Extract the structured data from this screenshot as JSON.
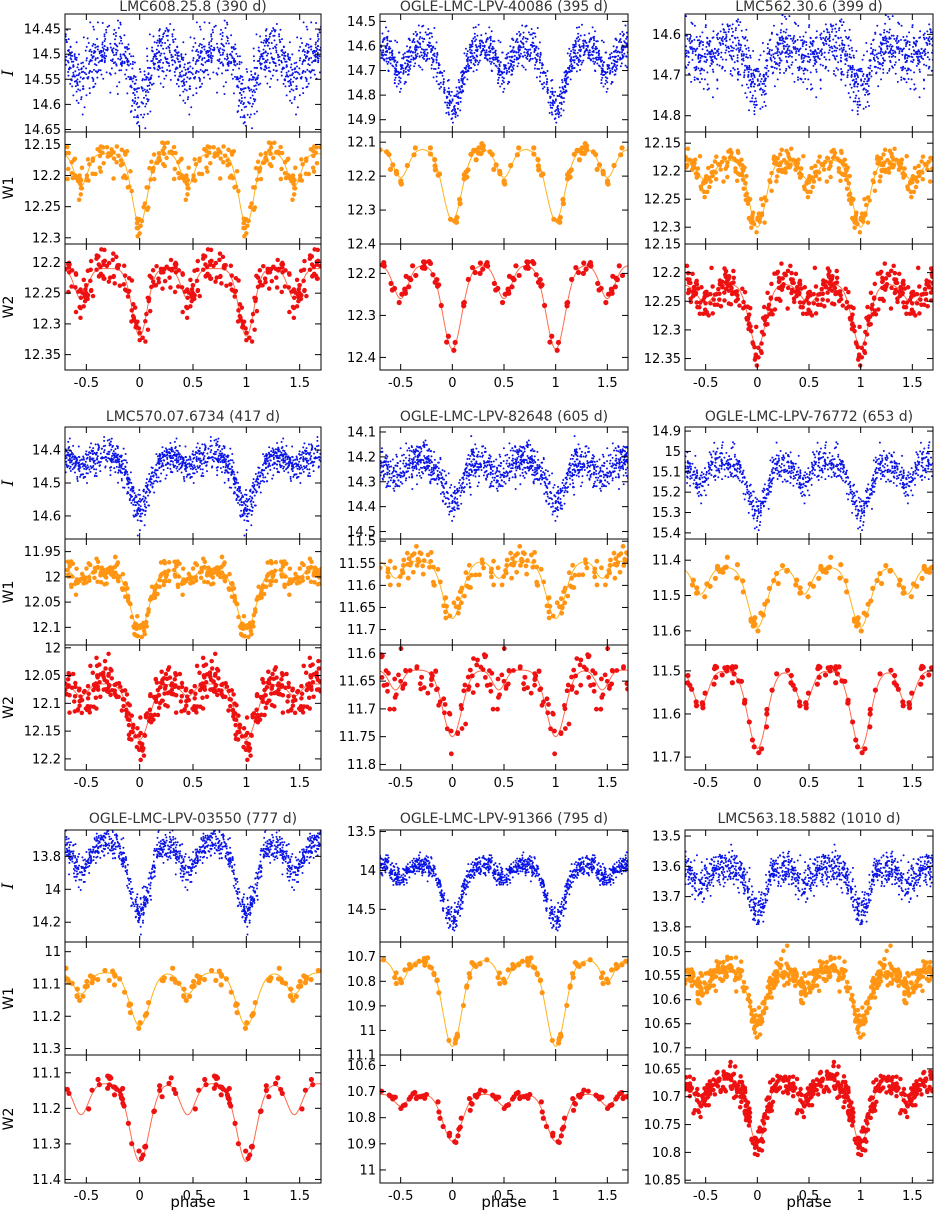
{
  "chart_data": {
    "type": "scatter",
    "xlabel": "phase",
    "xlim": [
      -0.7,
      1.7
    ],
    "x_ticks": [
      -0.5,
      0,
      0.5,
      1,
      1.5
    ],
    "band_labels": [
      "I",
      "W1",
      "W2"
    ],
    "colors": {
      "I": "#0a14e6",
      "W1": "#ff9512",
      "W1_model": "#ffb21a",
      "W2": "#ee1111",
      "W2_model": "#ff6a4a"
    },
    "axes_inverted_y": true,
    "stars": [
      {
        "title": "LMC608.25.8  (390 d)",
        "template": {
          "dips": [
            [
              0,
              1.0,
              0.07
            ],
            [
              0.45,
              0.45,
              0.06
            ]
          ]
        },
        "panels": [
          {
            "band": "I",
            "ylim": [
              14.42,
              14.655
            ],
            "ticks": [
              14.45,
              14.5,
              14.55,
              14.6,
              14.65
            ],
            "base": 14.5,
            "amp": 0.09,
            "scatter": 0.03,
            "n": 520,
            "size": 1.6
          },
          {
            "band": "W1",
            "ylim": [
              12.13,
              12.31
            ],
            "ticks": [
              12.15,
              12.2,
              12.25,
              12.3
            ],
            "base": 12.165,
            "amp": 0.115,
            "scatter": 0.015,
            "n": 110,
            "size": 3.3
          },
          {
            "band": "W2",
            "ylim": [
              12.17,
              12.375
            ],
            "ticks": [
              12.2,
              12.25,
              12.3,
              12.35
            ],
            "base": 12.21,
            "amp": 0.11,
            "scatter": 0.018,
            "n": 130,
            "size": 3.3
          }
        ]
      },
      {
        "title": "OGLE-LMC-LPV-40086  (395 d)",
        "template": {
          "dips": [
            [
              0,
              1.0,
              0.09
            ],
            [
              0.5,
              0.4,
              0.07
            ]
          ]
        },
        "panels": [
          {
            "band": "I",
            "ylim": [
              14.47,
              14.95
            ],
            "ticks": [
              14.5,
              14.6,
              14.7,
              14.8,
              14.9
            ],
            "base": 14.6,
            "amp": 0.25,
            "scatter": 0.04,
            "n": 520,
            "size": 1.6
          },
          {
            "band": "W1",
            "ylim": [
              12.07,
              12.4
            ],
            "ticks": [
              12.1,
              12.2,
              12.3,
              12.4
            ],
            "base": 12.12,
            "amp": 0.21,
            "scatter": 0.012,
            "n": 40,
            "size": 4
          },
          {
            "band": "W2",
            "ylim": [
              12.13,
              12.43
            ],
            "ticks": [
              12.2,
              12.3,
              12.4
            ],
            "base": 12.18,
            "amp": 0.2,
            "scatter": 0.012,
            "n": 45,
            "size": 4
          }
        ]
      },
      {
        "title": "LMC562.30.6  (399 d)",
        "template": {
          "dips": [
            [
              0,
              1.0,
              0.08
            ],
            [
              0.5,
              0.3,
              0.08
            ]
          ]
        },
        "panels": [
          {
            "band": "I",
            "ylim": [
              14.55,
              14.84
            ],
            "ticks": [
              14.6,
              14.7,
              14.8
            ],
            "base": 14.63,
            "amp": 0.1,
            "scatter": 0.035,
            "n": 520,
            "size": 1.6
          },
          {
            "band": "W1",
            "ylim": [
              12.13,
              12.33
            ],
            "ticks": [
              12.15,
              12.2,
              12.25,
              12.3
            ],
            "base": 12.18,
            "amp": 0.12,
            "scatter": 0.015,
            "n": 150,
            "size": 3.3
          },
          {
            "band": "W2",
            "ylim": [
              12.15,
              12.37
            ],
            "ticks": [
              12.15,
              12.2,
              12.25,
              12.3,
              12.35
            ],
            "base": 12.22,
            "amp": 0.11,
            "scatter": 0.018,
            "n": 170,
            "size": 3.3
          }
        ]
      },
      {
        "title": "LMC570.07.6734  (417 d)",
        "template": {
          "dips": [
            [
              0,
              1.0,
              0.09
            ],
            [
              0.45,
              0.22,
              0.06
            ]
          ]
        },
        "panels": [
          {
            "band": "I",
            "ylim": [
              14.33,
              14.67
            ],
            "ticks": [
              14.4,
              14.5,
              14.6
            ],
            "base": 14.42,
            "amp": 0.16,
            "scatter": 0.025,
            "n": 560,
            "size": 1.6
          },
          {
            "band": "W1",
            "ylim": [
              11.925,
              12.135
            ],
            "ticks": [
              11.95,
              12,
              12.05,
              12.1
            ],
            "base": 11.985,
            "amp": 0.12,
            "scatter": 0.013,
            "n": 150,
            "size": 3.3
          },
          {
            "band": "W2",
            "ylim": [
              11.995,
              12.22
            ],
            "ticks": [
              12,
              12.05,
              12.1,
              12.15,
              12.2
            ],
            "base": 12.065,
            "amp": 0.1,
            "scatter": 0.02,
            "n": 180,
            "size": 3.3
          }
        ]
      },
      {
        "title": "OGLE-LMC-LPV-82648  (605 d)",
        "template": {
          "dips": [
            [
              0,
              1.0,
              0.09
            ],
            [
              0.45,
              0.3,
              0.06
            ]
          ]
        },
        "panels": [
          {
            "band": "I",
            "ylim": [
              14.08,
              14.53
            ],
            "ticks": [
              14.1,
              14.2,
              14.3,
              14.4,
              14.5
            ],
            "base": 14.22,
            "amp": 0.16,
            "scatter": 0.035,
            "n": 520,
            "size": 1.6
          },
          {
            "band": "W1",
            "ylim": [
              11.495,
              11.735
            ],
            "ticks": [
              11.5,
              11.55,
              11.6,
              11.65,
              11.7
            ],
            "base": 11.545,
            "amp": 0.13,
            "scatter": 0.018,
            "n": 70,
            "size": 3.6
          },
          {
            "band": "W2",
            "ylim": [
              11.585,
              11.81
            ],
            "ticks": [
              11.6,
              11.65,
              11.7,
              11.75,
              11.8
            ],
            "base": 11.63,
            "amp": 0.12,
            "scatter": 0.02,
            "n": 70,
            "size": 3.6
          }
        ]
      },
      {
        "title": "OGLE-LMC-LPV-76772  (653 d)",
        "template": {
          "dips": [
            [
              0,
              1.0,
              0.09
            ],
            [
              0.45,
              0.45,
              0.07
            ]
          ]
        },
        "panels": [
          {
            "band": "I",
            "ylim": [
              14.88,
              15.43
            ],
            "ticks": [
              14.9,
              15,
              15.1,
              15.2,
              15.3,
              15.4
            ],
            "base": 15.05,
            "amp": 0.25,
            "scatter": 0.04,
            "n": 420,
            "size": 1.6
          },
          {
            "band": "W1",
            "ylim": [
              11.34,
              11.64
            ],
            "ticks": [
              11.4,
              11.5,
              11.6
            ],
            "base": 11.42,
            "amp": 0.17,
            "scatter": 0.012,
            "n": 40,
            "size": 4
          },
          {
            "band": "W2",
            "ylim": [
              11.44,
              11.73
            ],
            "ticks": [
              11.5,
              11.6,
              11.7
            ],
            "base": 11.5,
            "amp": 0.18,
            "scatter": 0.012,
            "n": 40,
            "size": 4
          }
        ]
      },
      {
        "title": "OGLE-LMC-LPV-03550  (777 d)",
        "template": {
          "dips": [
            [
              0,
              1.0,
              0.09
            ],
            [
              0.45,
              0.4,
              0.07
            ]
          ]
        },
        "panels": [
          {
            "band": "I",
            "ylim": [
              13.64,
              14.32
            ],
            "ticks": [
              13.8,
              14,
              14.2
            ],
            "base": 13.72,
            "amp": 0.42,
            "scatter": 0.045,
            "n": 520,
            "size": 1.6
          },
          {
            "band": "W1",
            "ylim": [
              10.97,
              11.32
            ],
            "ticks": [
              11,
              11.1,
              11.2,
              11.3
            ],
            "base": 11.065,
            "amp": 0.165,
            "scatter": 0.012,
            "n": 40,
            "size": 4
          },
          {
            "band": "W2",
            "ylim": [
              11.05,
              11.41
            ],
            "ticks": [
              11.1,
              11.2,
              11.3,
              11.4
            ],
            "base": 11.13,
            "amp": 0.22,
            "scatter": 0.012,
            "n": 40,
            "size": 4
          }
        ]
      },
      {
        "title": "OGLE-LMC-LPV-91366  (795 d)",
        "template": {
          "dips": [
            [
              0,
              1.0,
              0.09
            ],
            [
              0.5,
              0.25,
              0.06
            ]
          ]
        },
        "panels": [
          {
            "band": "I",
            "ylim": [
              13.48,
              14.92
            ],
            "ticks": [
              13.5,
              14,
              14.5
            ],
            "base": 13.93,
            "amp": 0.7,
            "scatter": 0.07,
            "n": 520,
            "size": 1.6
          },
          {
            "band": "W1",
            "ylim": [
              10.64,
              11.1
            ],
            "ticks": [
              10.7,
              10.8,
              10.9,
              11,
              11.1
            ],
            "base": 10.715,
            "amp": 0.35,
            "scatter": 0.012,
            "n": 40,
            "size": 4
          },
          {
            "band": "W2",
            "ylim": [
              10.56,
              11.05
            ],
            "ticks": [
              10.6,
              10.7,
              10.8,
              10.9,
              11
            ],
            "base": 10.71,
            "amp": 0.18,
            "scatter": 0.012,
            "n": 40,
            "size": 4
          }
        ]
      },
      {
        "title": "LMC563.18.5882  (1010 d)",
        "template": {
          "dips": [
            [
              0,
              1.0,
              0.08
            ],
            [
              0.45,
              0.35,
              0.07
            ]
          ]
        },
        "panels": [
          {
            "band": "I",
            "ylim": [
              13.48,
              13.85
            ],
            "ticks": [
              13.5,
              13.6,
              13.7,
              13.8
            ],
            "base": 13.6,
            "amp": 0.15,
            "scatter": 0.03,
            "n": 520,
            "size": 1.6
          },
          {
            "band": "W1",
            "ylim": [
              10.48,
              10.715
            ],
            "ticks": [
              10.5,
              10.55,
              10.6,
              10.65,
              10.7
            ],
            "base": 10.54,
            "amp": 0.11,
            "scatter": 0.015,
            "n": 230,
            "size": 3.3
          },
          {
            "band": "W2",
            "ylim": [
              10.625,
              10.855
            ],
            "ticks": [
              10.65,
              10.7,
              10.75,
              10.8,
              10.85
            ],
            "base": 10.67,
            "amp": 0.115,
            "scatter": 0.013,
            "n": 230,
            "size": 3.3
          }
        ]
      }
    ]
  }
}
